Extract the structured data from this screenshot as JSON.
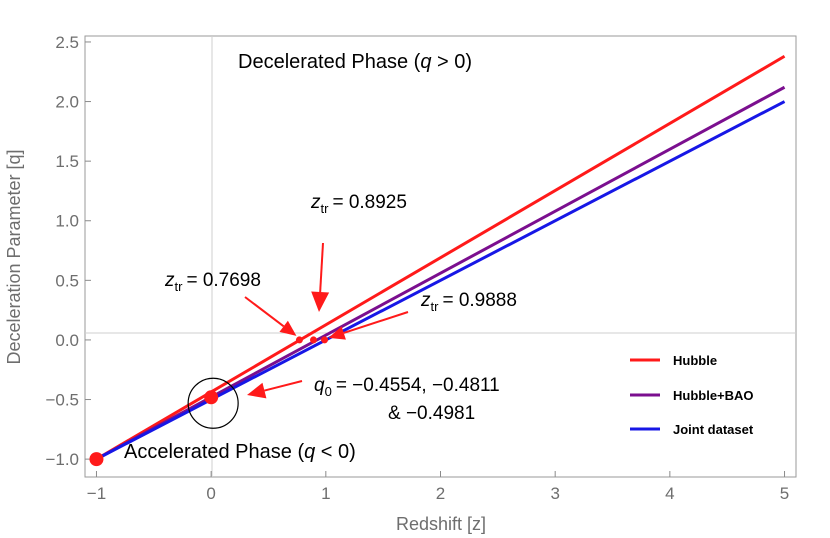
{
  "chart_data": {
    "type": "line",
    "xlabel": "Redshift [z]",
    "ylabel": "Deceleration Parameter [q]",
    "xlim": [
      -1.1,
      5.1
    ],
    "ylim": [
      -1.15,
      2.55
    ],
    "xticks": [
      -1,
      0,
      1,
      2,
      3,
      4,
      5
    ],
    "xtick_labels": [
      "−1",
      "0",
      "1",
      "2",
      "3",
      "4",
      "5"
    ],
    "yticks": [
      -1.0,
      -0.5,
      0.0,
      0.5,
      1.0,
      1.5,
      2.0,
      2.5
    ],
    "ytick_labels": [
      "−1.0",
      "−0.5",
      "0.0",
      "0.5",
      "1.0",
      "1.5",
      "2.0",
      "2.5"
    ],
    "series": [
      {
        "name": "Hubble",
        "color": "#ff1a1a",
        "x": [
          -1,
          5
        ],
        "y": [
          -1.0,
          2.38
        ]
      },
      {
        "name": "Hubble+BAO",
        "color": "#7b0f8f",
        "x": [
          -1,
          5
        ],
        "y": [
          -1.0,
          2.12
        ]
      },
      {
        "name": "Joint dataset",
        "color": "#1717e6",
        "x": [
          -1,
          5
        ],
        "y": [
          -1.0,
          2.0
        ]
      }
    ],
    "transition_points": [
      {
        "x": 0.7698,
        "y": 0.0,
        "sub": "tr",
        "label": "= 0.7698"
      },
      {
        "x": 0.8925,
        "y": 0.0,
        "sub": "tr",
        "label": "= 0.8925"
      },
      {
        "x": 0.9888,
        "y": 0.0,
        "sub": "tr",
        "label": "= 0.9888"
      }
    ],
    "q0_point": {
      "x": 0,
      "y": -0.4811,
      "line1": "= −0.4554, −0.4811",
      "line2": "& −0.4981"
    },
    "endpoint": {
      "x": -1,
      "y": -1.0
    },
    "phase_top": {
      "prefix": "Decelerated Phase (",
      "var": "q",
      "suffix": " > 0)"
    },
    "phase_bottom": {
      "prefix": "Accelerated Phase (",
      "var": "q",
      "suffix": " < 0)"
    },
    "var_z": "z",
    "var_q": "q",
    "sub_zero": "0",
    "annotation_color": "#ff1a1a",
    "grid": "axes-only",
    "legend_position": "right-middle"
  }
}
